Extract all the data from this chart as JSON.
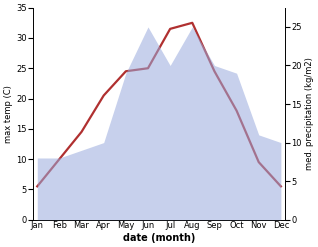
{
  "months": [
    "Jan",
    "Feb",
    "Mar",
    "Apr",
    "May",
    "Jun",
    "Jul",
    "Aug",
    "Sep",
    "Oct",
    "Nov",
    "Dec"
  ],
  "temperature": [
    5.5,
    10.0,
    14.5,
    20.5,
    24.5,
    25.0,
    31.5,
    32.5,
    24.5,
    18.0,
    9.5,
    5.5
  ],
  "precipitation": [
    8,
    8,
    9,
    10,
    19,
    25,
    20,
    25,
    20,
    19,
    11,
    10
  ],
  "temp_color": "#b03030",
  "precip_color": "#99aadd",
  "precip_alpha": 0.55,
  "temp_ylim": [
    0,
    35
  ],
  "precip_ylim": [
    0,
    27.5
  ],
  "temp_yticks": [
    0,
    5,
    10,
    15,
    20,
    25,
    30,
    35
  ],
  "precip_yticks": [
    0,
    5,
    10,
    15,
    20,
    25
  ],
  "ylabel_left": "max temp (C)",
  "ylabel_right": "med. precipitation (kg/m2)",
  "xlabel": "date (month)",
  "background_color": "#ffffff",
  "linewidth": 1.6,
  "figwidth": 3.18,
  "figheight": 2.47,
  "dpi": 100
}
